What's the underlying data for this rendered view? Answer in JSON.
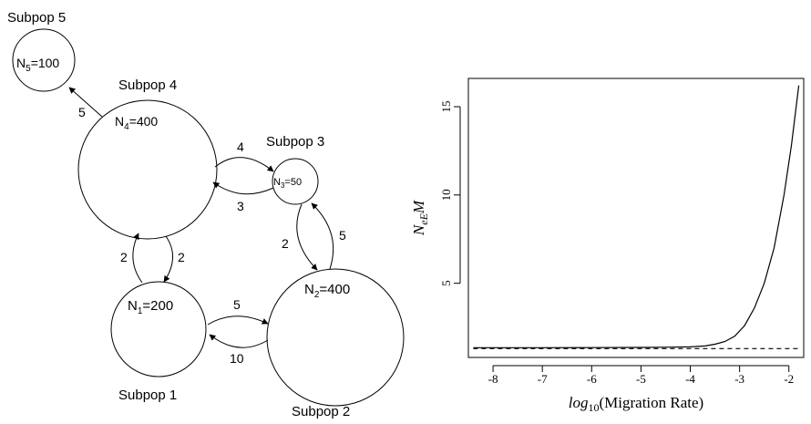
{
  "diagram": {
    "subpops": [
      {
        "id": "subpop-5",
        "label": "Subpop 5",
        "size_prefix": "N",
        "size_sub": "5",
        "size_value": "=100"
      },
      {
        "id": "subpop-4",
        "label": "Subpop 4",
        "size_prefix": "N",
        "size_sub": "4",
        "size_value": "=400"
      },
      {
        "id": "subpop-3",
        "label": "Subpop 3",
        "size_prefix": "N",
        "size_sub": "3",
        "size_value": "=50"
      },
      {
        "id": "subpop-1",
        "label": "Subpop 1",
        "size_prefix": "N",
        "size_sub": "1",
        "size_value": "=200"
      },
      {
        "id": "subpop-2",
        "label": "Subpop 2",
        "size_prefix": "N",
        "size_sub": "2",
        "size_value": "=400"
      }
    ],
    "migrations": [
      {
        "from": "subpop-4",
        "to": "subpop-5",
        "rate": "5"
      },
      {
        "from": "subpop-4",
        "to": "subpop-3",
        "rate": "4"
      },
      {
        "from": "subpop-3",
        "to": "subpop-4",
        "rate": "3"
      },
      {
        "from": "subpop-3",
        "to": "subpop-2",
        "rate": "2"
      },
      {
        "from": "subpop-2",
        "to": "subpop-3",
        "rate": "5"
      },
      {
        "from": "subpop-1",
        "to": "subpop-4",
        "rate": "2"
      },
      {
        "from": "subpop-4",
        "to": "subpop-1",
        "rate": "2"
      },
      {
        "from": "subpop-1",
        "to": "subpop-2",
        "rate": "5"
      },
      {
        "from": "subpop-2",
        "to": "subpop-1",
        "rate": "10"
      }
    ]
  },
  "chart_data": {
    "type": "line",
    "ylabel_main": "N",
    "ylabel_sub": "eE",
    "ylabel_tail": "M",
    "xlabel_main": "log",
    "xlabel_sub": "10",
    "xlabel_tail": "(Migration Rate)",
    "xlim": [
      -8.5,
      -1.7
    ],
    "ylim": [
      0.8,
      16.6
    ],
    "x_ticks": [
      -8,
      -7,
      -6,
      -5,
      -4,
      -3,
      -2
    ],
    "x_tick_labels": [
      "-8",
      "-7",
      "-6",
      "-5",
      "-4",
      "-3",
      "-2"
    ],
    "y_ticks": [
      5,
      10,
      15
    ],
    "y_tick_labels": [
      "5",
      "10",
      "15"
    ],
    "series": [
      {
        "style": "solid",
        "x": [
          -8.4,
          -7.0,
          -6.0,
          -5.0,
          -4.5,
          -4.0,
          -3.7,
          -3.5,
          -3.3,
          -3.1,
          -2.9,
          -2.7,
          -2.5,
          -2.3,
          -2.1,
          -1.95,
          -1.8
        ],
        "y": [
          1.35,
          1.35,
          1.36,
          1.37,
          1.38,
          1.4,
          1.45,
          1.55,
          1.7,
          2.0,
          2.6,
          3.6,
          5.0,
          7.0,
          10.0,
          12.8,
          16.2
        ]
      },
      {
        "style": "dashed",
        "x": [
          -8.4,
          -1.8
        ],
        "y": [
          1.3,
          1.3
        ]
      }
    ],
    "grid": false,
    "legend": "none"
  }
}
